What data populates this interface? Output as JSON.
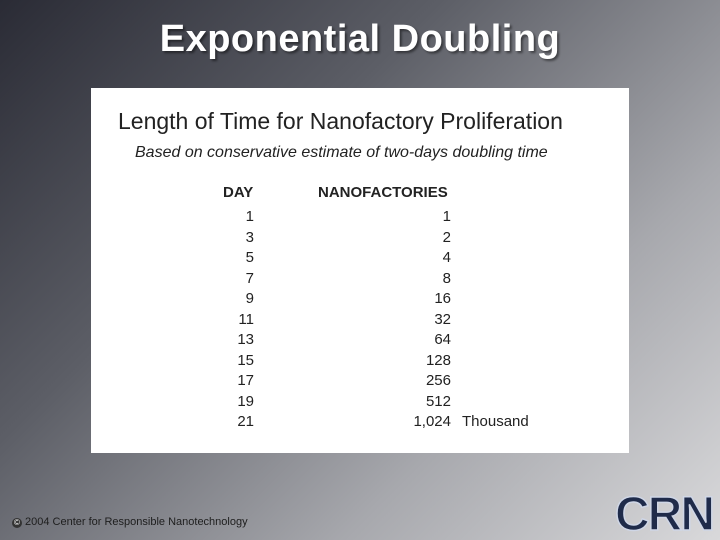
{
  "slide": {
    "title": "Exponential Doubling"
  },
  "panel": {
    "title": "Length of Time for Nanofactory Proliferation",
    "subtitle": "Based on conservative estimate of two-days doubling time",
    "headers": {
      "day": "DAY",
      "nanofactories": "NANOFACTORIES"
    },
    "rows": [
      {
        "day": "1",
        "nano": "1",
        "unit": ""
      },
      {
        "day": "3",
        "nano": "2",
        "unit": ""
      },
      {
        "day": "5",
        "nano": "4",
        "unit": ""
      },
      {
        "day": "7",
        "nano": "8",
        "unit": ""
      },
      {
        "day": "9",
        "nano": "16",
        "unit": ""
      },
      {
        "day": "11",
        "nano": "32",
        "unit": ""
      },
      {
        "day": "13",
        "nano": "64",
        "unit": ""
      },
      {
        "day": "15",
        "nano": "128",
        "unit": ""
      },
      {
        "day": "17",
        "nano": "256",
        "unit": ""
      },
      {
        "day": "19",
        "nano": "512",
        "unit": ""
      },
      {
        "day": "21",
        "nano": "1,024",
        "unit": "Thousand"
      }
    ]
  },
  "footer": {
    "copyright_symbol": "©",
    "copyright": "2004 Center for Responsible Nanotechnology",
    "logo_text": "CRN"
  },
  "colors": {
    "logo_fill": "#1f2b4a",
    "logo_highlight": "#cfd6e6"
  }
}
